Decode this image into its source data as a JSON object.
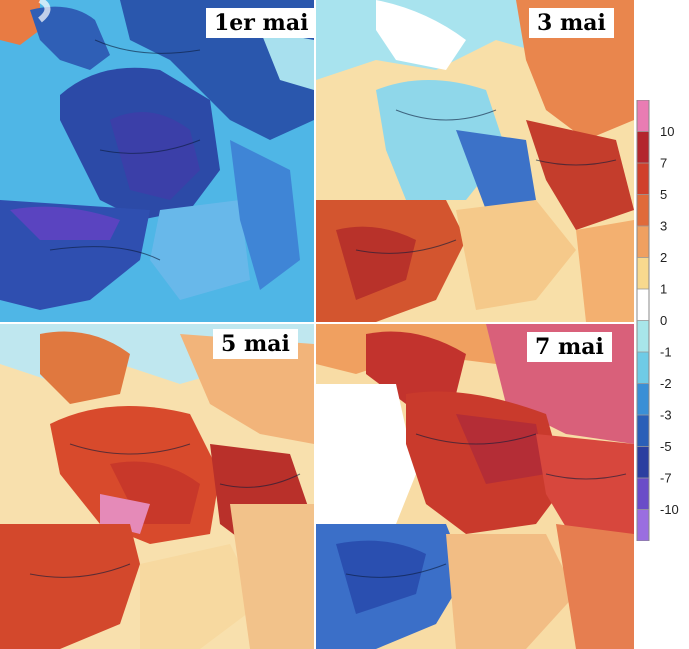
{
  "panels": [
    {
      "label": "1er mai",
      "anomaly": "cold"
    },
    {
      "label": "3 mai",
      "anomaly": "mixed"
    },
    {
      "label": "5 mai",
      "anomaly": "warm"
    },
    {
      "label": "7 mai",
      "anomaly": "very-warm"
    }
  ],
  "legend": {
    "ticks": [
      "10",
      "7",
      "5",
      "3",
      "2",
      "1",
      "0",
      "-1",
      "-2",
      "-3",
      "-5",
      "-7",
      "-10"
    ],
    "colors": [
      "#e97cb3",
      "#b3262d",
      "#d0402c",
      "#e06a3a",
      "#f0a060",
      "#f8d98e",
      "#ffffff",
      "#a8e6ea",
      "#6fcbe6",
      "#3a8fd6",
      "#2a5fb8",
      "#2b3ea0",
      "#6a4cc8",
      "#9a6ee0"
    ]
  }
}
